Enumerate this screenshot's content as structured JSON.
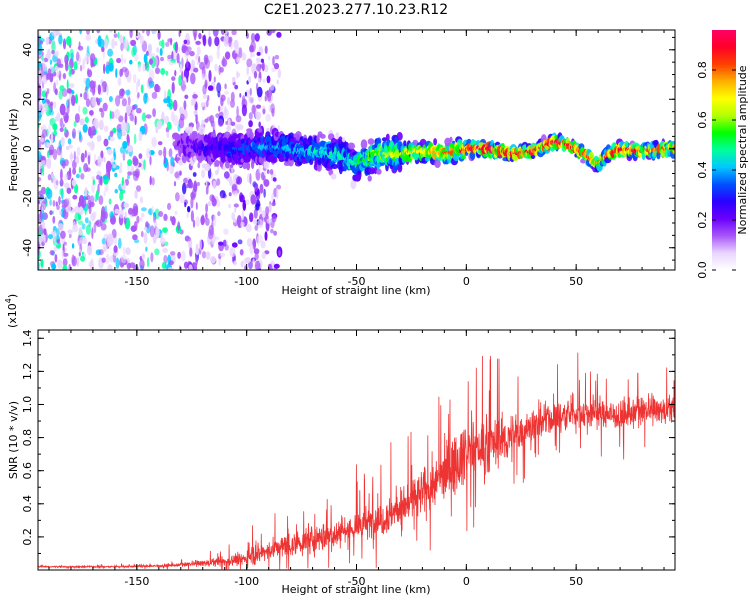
{
  "title": "C2E1.2023.277.10.23.R12",
  "chart_data": [
    {
      "type": "heatmap",
      "xlabel": "Height of straight line (km)",
      "ylabel": "Frequency (Hz)",
      "xlim": [
        -195,
        95
      ],
      "ylim": [
        -49,
        48
      ],
      "xticks": [
        -150,
        -100,
        -50,
        0,
        50
      ],
      "yticks": [
        -40,
        -20,
        0,
        20,
        40
      ],
      "colorbar": {
        "label": "Normalized spectral amplitude",
        "range": [
          0,
          0.96
        ],
        "ticks": [
          0.0,
          0.2,
          0.4,
          0.6,
          0.8
        ],
        "colormap": [
          "#ffffff",
          "#e9d5ff",
          "#a855f7",
          "#6a00ff",
          "#2a00ff",
          "#0050ff",
          "#00c8ff",
          "#00ff9c",
          "#00ff00",
          "#b4ff00",
          "#ffff00",
          "#ffb000",
          "#ff4000",
          "#ff0028",
          "#ff0066"
        ]
      },
      "track": {
        "height_km": [
          -130,
          -110,
          -100,
          -90,
          -80,
          -70,
          -60,
          -50,
          -45,
          -40,
          -30,
          -20,
          -10,
          0,
          10,
          20,
          30,
          35,
          40,
          45,
          50,
          55,
          60,
          65,
          70,
          80,
          90
        ],
        "frequency_hz": [
          1,
          0,
          0,
          1,
          0,
          -1,
          -2,
          -6,
          -4,
          -2,
          -2,
          -1,
          -2,
          0,
          0,
          -2,
          -1,
          1,
          3,
          2,
          0,
          -3,
          -6,
          -2,
          0,
          -1,
          0
        ],
        "peak_amplitude": [
          0.2,
          0.3,
          0.35,
          0.4,
          0.4,
          0.45,
          0.45,
          0.5,
          0.55,
          0.6,
          0.65,
          0.7,
          0.8,
          0.9,
          0.95,
          0.9,
          0.85,
          0.9,
          0.95,
          0.9,
          0.85,
          0.8,
          0.75,
          0.85,
          0.9,
          0.85,
          0.8
        ]
      },
      "noise_region_below_km": -105
    },
    {
      "type": "line",
      "xlabel": "Height of straight line (km)",
      "ylabel": "SNR (10 * v/v)",
      "scale_label": "(x10",
      "scale_exponent": "4",
      "xlim": [
        -195,
        95
      ],
      "ylim": [
        0,
        1.45
      ],
      "xticks": [
        -150,
        -100,
        -50,
        0,
        50
      ],
      "yticks": [
        0.2,
        0.4,
        0.6,
        0.8,
        1.0,
        1.2,
        1.4
      ],
      "color": "#ee3333",
      "series": [
        {
          "x": [
            -195,
            -180,
            -160,
            -140,
            -130,
            -120,
            -110,
            -100,
            -90,
            -80,
            -70,
            -60,
            -50,
            -40,
            -30,
            -20,
            -10,
            0,
            10,
            20,
            30,
            40,
            50,
            60,
            70,
            80,
            95
          ],
          "mean": [
            0.02,
            0.02,
            0.02,
            0.025,
            0.03,
            0.04,
            0.05,
            0.07,
            0.12,
            0.15,
            0.18,
            0.22,
            0.26,
            0.3,
            0.38,
            0.46,
            0.58,
            0.72,
            0.75,
            0.8,
            0.88,
            0.92,
            0.95,
            0.95,
            0.93,
            0.95,
            0.97
          ],
          "noise": [
            0.005,
            0.006,
            0.008,
            0.01,
            0.015,
            0.03,
            0.04,
            0.06,
            0.09,
            0.1,
            0.12,
            0.13,
            0.14,
            0.16,
            0.18,
            0.22,
            0.25,
            0.25,
            0.25,
            0.2,
            0.14,
            0.14,
            0.16,
            0.15,
            0.12,
            0.12,
            0.12
          ]
        }
      ]
    }
  ]
}
